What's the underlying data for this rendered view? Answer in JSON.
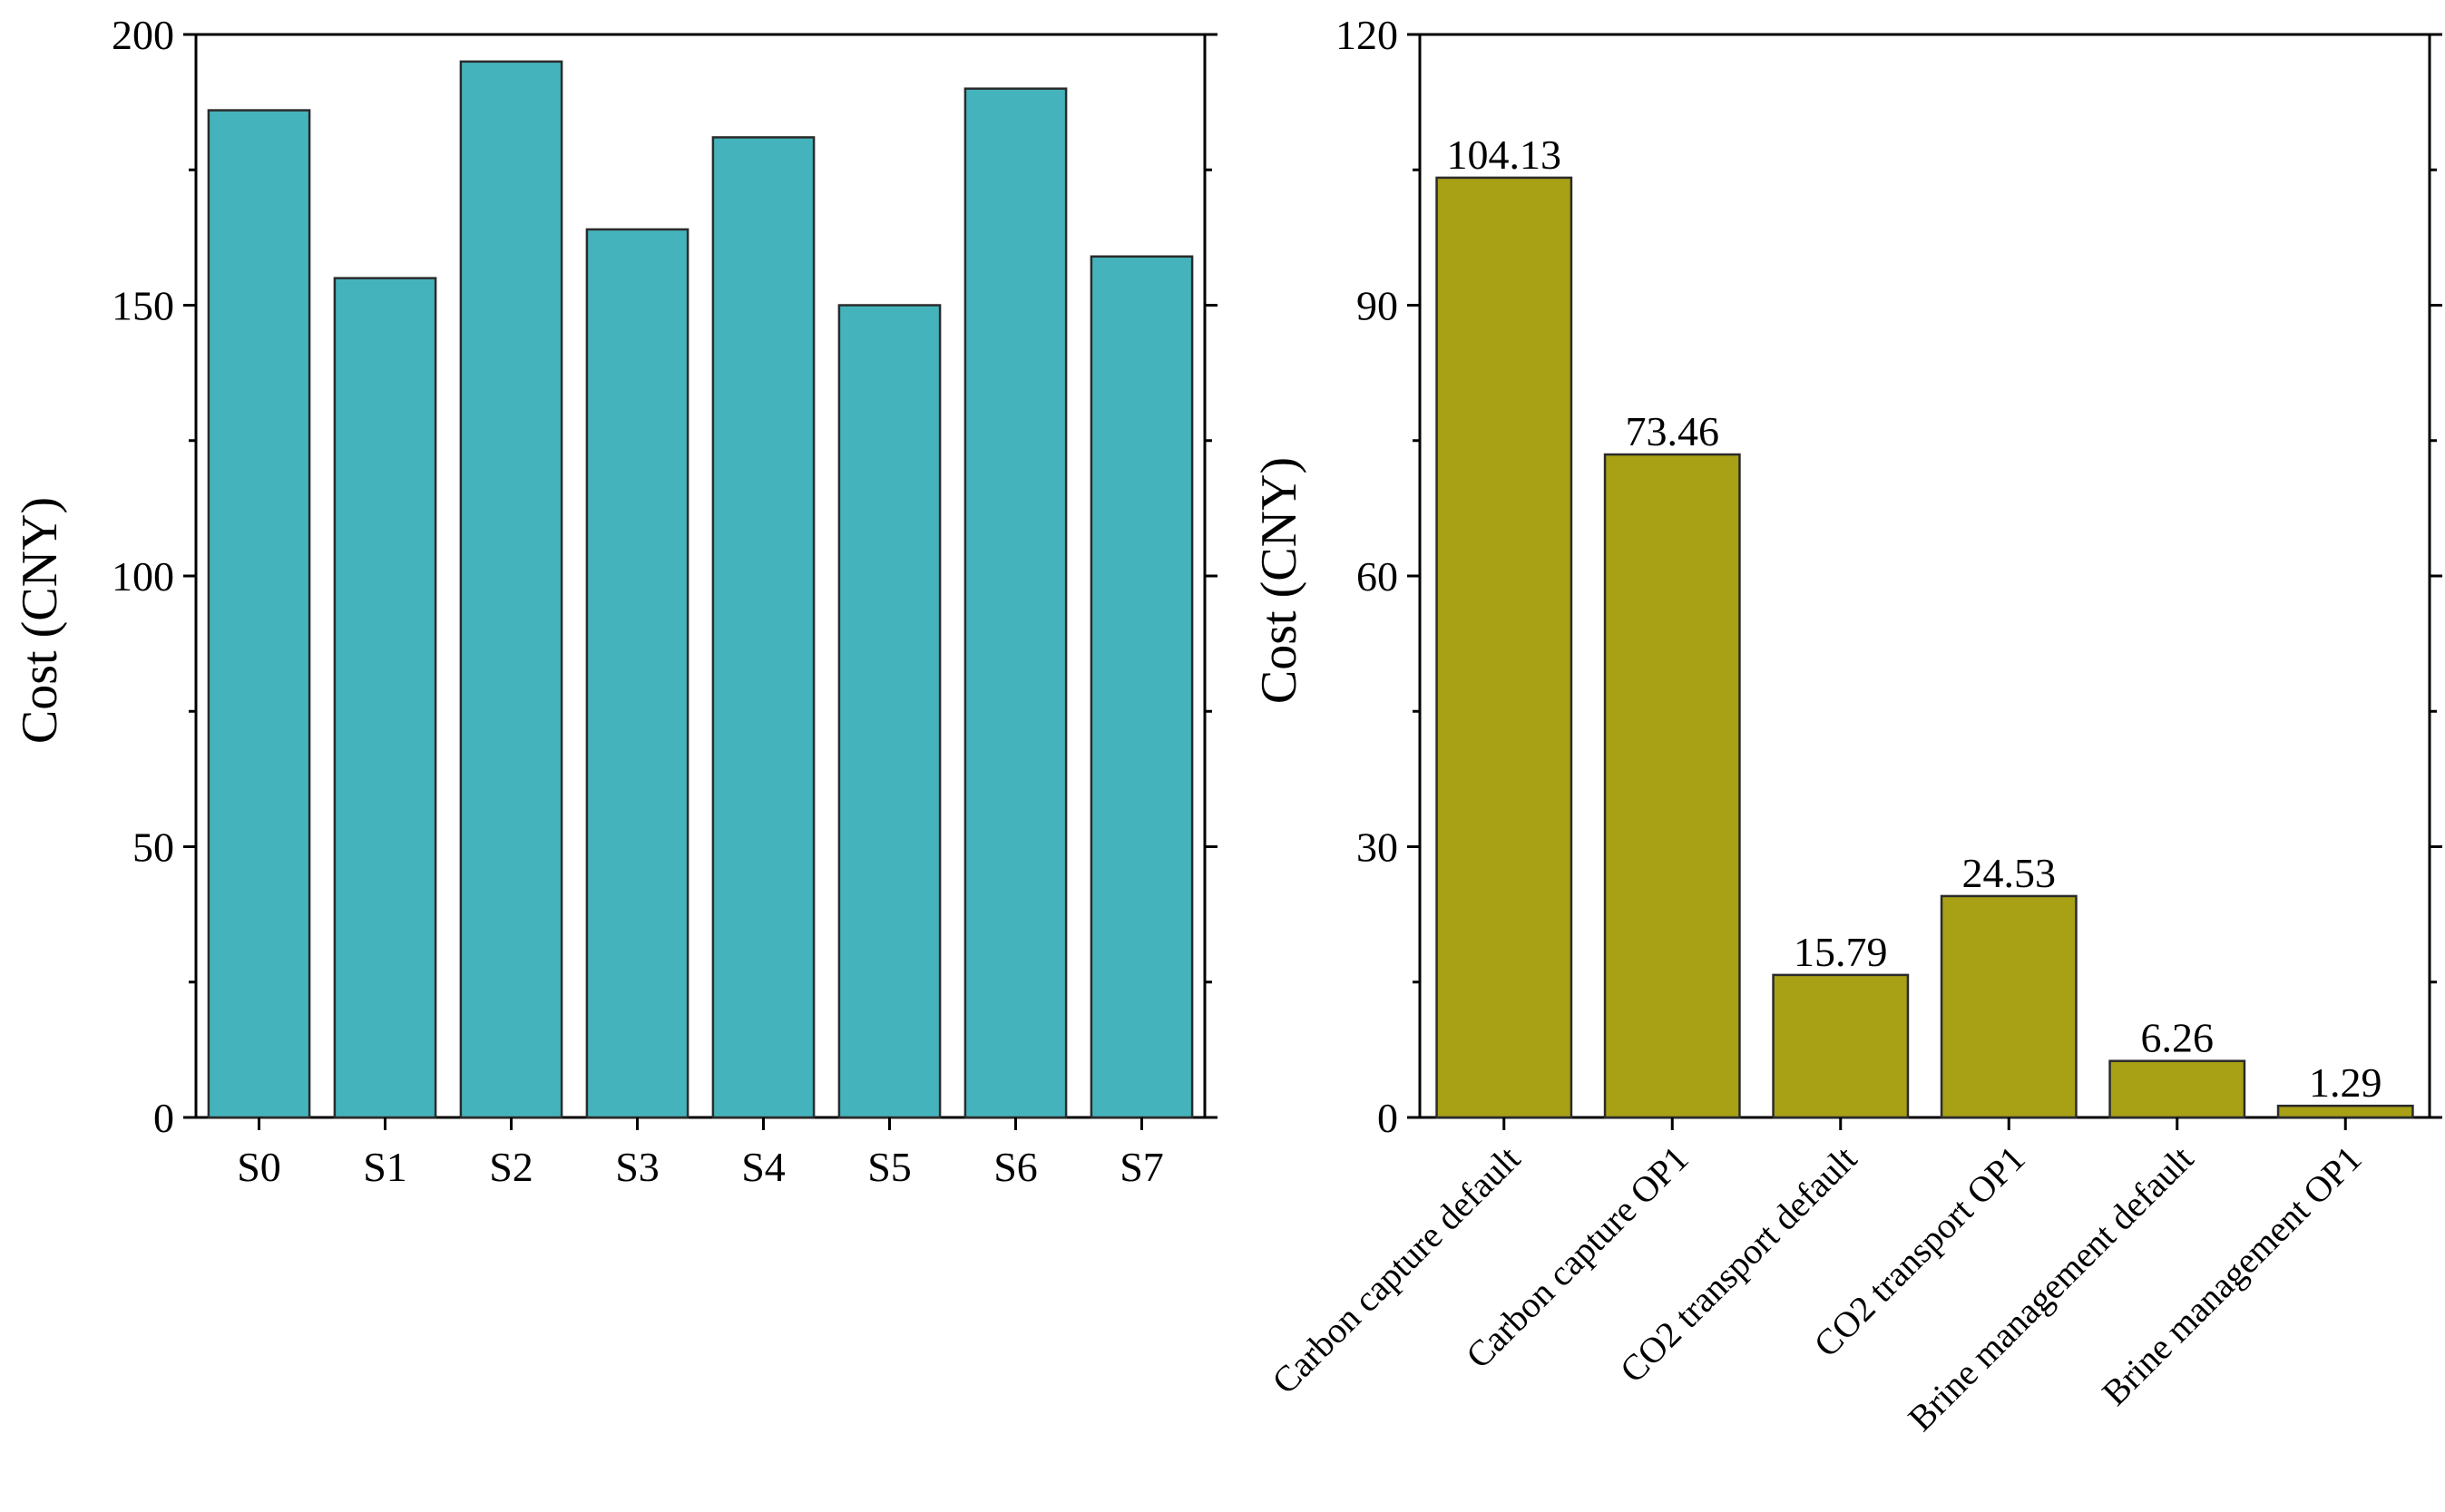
{
  "chart_data": [
    {
      "type": "bar",
      "title": "",
      "xlabel": "",
      "ylabel": "Cost (CNY)",
      "ylim": [
        0,
        200
      ],
      "yticks": [
        0,
        50,
        100,
        150,
        200
      ],
      "categories": [
        "S0",
        "S1",
        "S2",
        "S3",
        "S4",
        "S5",
        "S6",
        "S7"
      ],
      "values": [
        186,
        155,
        195,
        164,
        181,
        150,
        190,
        159
      ],
      "bar_color": "#45b3bc",
      "grid": false,
      "legend": "none"
    },
    {
      "type": "bar",
      "title": "",
      "xlabel": "",
      "ylabel": "Cost (CNY)",
      "ylim": [
        0,
        120
      ],
      "yticks": [
        0,
        30,
        60,
        90,
        120
      ],
      "categories": [
        "Carbon capture default",
        "Carbon capture OP1",
        "CO2 transport default",
        "CO2 transport OP1",
        "Brine management default",
        "Brine management OP1"
      ],
      "values": [
        104.13,
        73.46,
        15.79,
        24.53,
        6.26,
        1.29
      ],
      "data_labels": [
        "104.13",
        "73.46",
        "15.79",
        "24.53",
        "6.26",
        "1.29"
      ],
      "bar_color": "#a8a015",
      "grid": false,
      "legend": "none"
    }
  ]
}
